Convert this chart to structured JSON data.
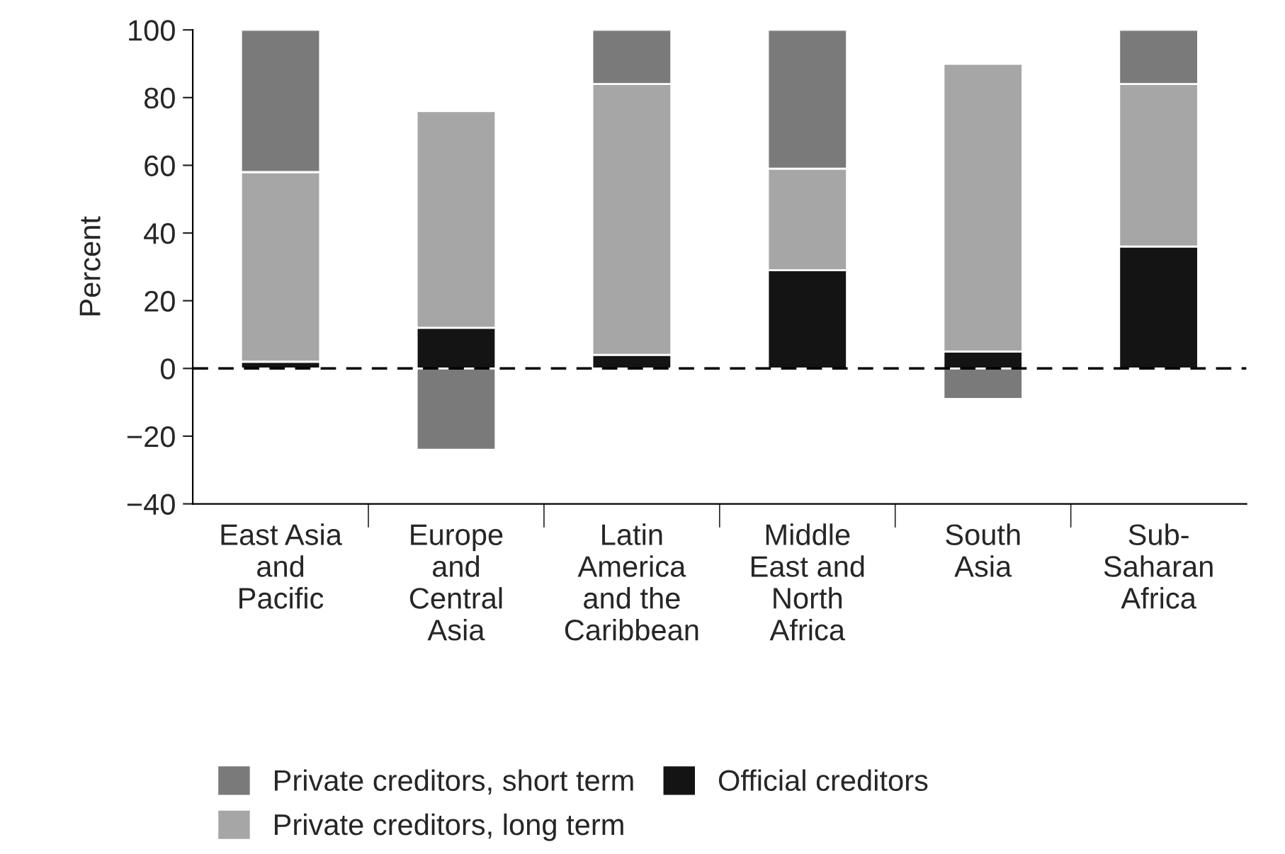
{
  "chart_data": {
    "type": "bar",
    "stacked": true,
    "ylabel": "Percent",
    "categories": [
      "East Asia\nand\nPacific",
      "Europe\nand\nCentral\nAsia",
      "Latin\nAmerica\nand the\nCaribbean",
      "Middle\nEast and\nNorth\nAfrica",
      "South\nAsia",
      "Sub-\nSaharan\nAfrica"
    ],
    "series": [
      {
        "name": "Official creditors",
        "color": "#141414",
        "values": [
          2,
          12,
          4,
          29,
          5,
          36
        ]
      },
      {
        "name": "Private creditors, long term",
        "color": "#a6a6a6",
        "values": [
          56,
          64,
          80,
          30,
          85,
          48
        ]
      },
      {
        "name": "Private creditors, short term",
        "color": "#7a7a7a",
        "values": [
          42,
          -24,
          16,
          41,
          -9,
          16
        ]
      }
    ],
    "ylim": [
      -40,
      100
    ],
    "yticks": [
      -40,
      -20,
      0,
      20,
      40,
      60,
      80,
      100
    ],
    "ref_lines": [
      {
        "axis": "y",
        "value": 0,
        "color": "#000000",
        "line_style": "dashed"
      }
    ],
    "grid": false,
    "legend": "bottom"
  }
}
